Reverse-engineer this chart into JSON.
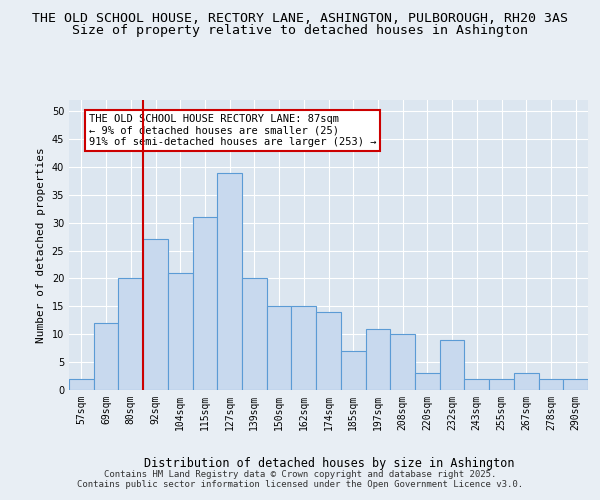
{
  "title_line1": "THE OLD SCHOOL HOUSE, RECTORY LANE, ASHINGTON, PULBOROUGH, RH20 3AS",
  "title_line2": "Size of property relative to detached houses in Ashington",
  "xlabel": "Distribution of detached houses by size in Ashington",
  "ylabel": "Number of detached properties",
  "categories": [
    "57sqm",
    "69sqm",
    "80sqm",
    "92sqm",
    "104sqm",
    "115sqm",
    "127sqm",
    "139sqm",
    "150sqm",
    "162sqm",
    "174sqm",
    "185sqm",
    "197sqm",
    "208sqm",
    "220sqm",
    "232sqm",
    "243sqm",
    "255sqm",
    "267sqm",
    "278sqm",
    "290sqm"
  ],
  "values": [
    2,
    12,
    20,
    27,
    21,
    31,
    39,
    20,
    15,
    15,
    14,
    7,
    11,
    10,
    3,
    9,
    2,
    2,
    3,
    2,
    2
  ],
  "bar_color": "#c8d9ee",
  "bar_edge_color": "#5b9bd5",
  "vline_x_index": 2.5,
  "vline_color": "#cc0000",
  "annotation_text": "THE OLD SCHOOL HOUSE RECTORY LANE: 87sqm\n← 9% of detached houses are smaller (25)\n91% of semi-detached houses are larger (253) →",
  "annotation_box_color": "#ffffff",
  "annotation_box_edge_color": "#cc0000",
  "ylim": [
    0,
    52
  ],
  "yticks": [
    0,
    5,
    10,
    15,
    20,
    25,
    30,
    35,
    40,
    45,
    50
  ],
  "background_color": "#e8eef4",
  "plot_background": "#dce6f0",
  "footer_line1": "Contains HM Land Registry data © Crown copyright and database right 2025.",
  "footer_line2": "Contains public sector information licensed under the Open Government Licence v3.0.",
  "grid_color": "#ffffff",
  "title_fontsize": 9.5,
  "subtitle_fontsize": 9.5,
  "tick_fontsize": 7,
  "ylabel_fontsize": 8,
  "xlabel_fontsize": 8.5,
  "annotation_fontsize": 7.5,
  "footer_fontsize": 6.5
}
